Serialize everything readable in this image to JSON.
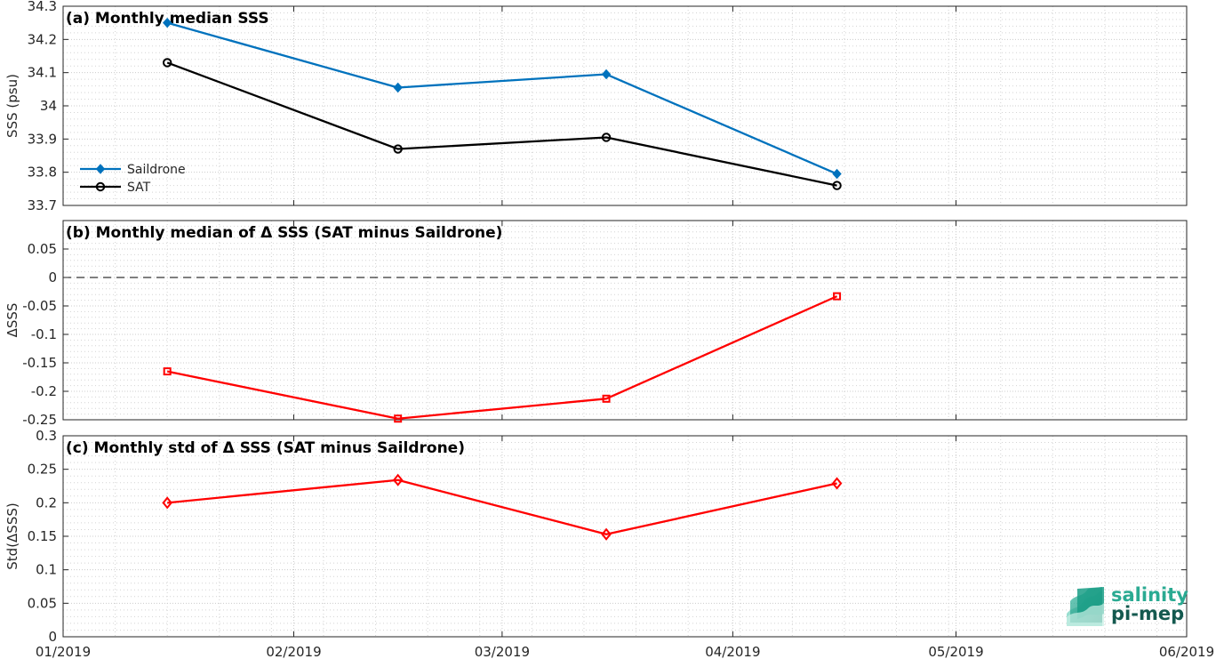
{
  "chart_data": [
    {
      "type": "line",
      "title": "(a) Monthly median SSS",
      "xlabel": "",
      "ylabel": "SSS (psu)",
      "xlim": [
        "01/2019",
        "06/2019"
      ],
      "ylim": [
        33.7,
        34.3
      ],
      "yticks": [
        "33.7",
        "33.8",
        "33.9",
        "34",
        "34.1",
        "34.2",
        "34.3"
      ],
      "grid": "on",
      "legend_position": "bottom-left",
      "x": [
        "2019-01-15",
        "2019-02-15",
        "2019-03-15",
        "2019-04-15"
      ],
      "series": [
        {
          "name": "Saildrone",
          "values": [
            34.25,
            34.055,
            34.095,
            33.795
          ],
          "color": "#0072BD",
          "marker": "diamond-filled"
        },
        {
          "name": "SAT",
          "values": [
            34.13,
            33.87,
            33.905,
            33.76
          ],
          "color": "#000000",
          "marker": "circle-open"
        }
      ]
    },
    {
      "type": "line",
      "title": "(b) Monthly median of Δ SSS (SAT minus Saildrone)",
      "xlabel": "",
      "ylabel": "ΔSSS",
      "xlim": [
        "01/2019",
        "06/2019"
      ],
      "ylim": [
        -0.25,
        0.1
      ],
      "yticks": [
        "-0.25",
        "-0.2",
        "-0.15",
        "-0.1",
        "-0.05",
        "0",
        "0.05"
      ],
      "grid": "on",
      "reference_line": {
        "y": 0,
        "style": "dashed"
      },
      "x": [
        "2019-01-15",
        "2019-02-15",
        "2019-03-15",
        "2019-04-15"
      ],
      "series": [
        {
          "values": [
            -0.165,
            -0.248,
            -0.213,
            -0.033
          ],
          "color": "#FF0000",
          "marker": "square-open"
        }
      ]
    },
    {
      "type": "line",
      "title": "(c) Monthly std of Δ SSS (SAT minus Saildrone)",
      "xlabel": "",
      "ylabel": "Std(ΔSSS)",
      "xlim": [
        "01/2019",
        "06/2019"
      ],
      "ylim": [
        0,
        0.3
      ],
      "yticks": [
        "0",
        "0.05",
        "0.1",
        "0.15",
        "0.2",
        "0.25",
        "0.3"
      ],
      "xticks": [
        "01/2019",
        "02/2019",
        "03/2019",
        "04/2019",
        "05/2019",
        "06/2019"
      ],
      "grid": "on",
      "x": [
        "2019-01-15",
        "2019-02-15",
        "2019-03-15",
        "2019-04-15"
      ],
      "series": [
        {
          "values": [
            0.2,
            0.234,
            0.153,
            0.229
          ],
          "color": "#FF0000",
          "marker": "diamond-open"
        }
      ]
    }
  ],
  "logo": {
    "line1": "salinity",
    "line2": "pi-mep"
  }
}
